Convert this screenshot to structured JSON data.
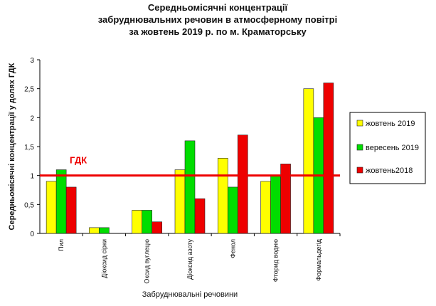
{
  "chart_data": {
    "type": "bar",
    "title_lines": [
      "Середньомісячні концентрації",
      "забруднювальних  речовин  в атмосферному повітрі",
      "за жовтень 2019 р. по м. Краматорську"
    ],
    "xlabel": "Забруднювальні речовини",
    "ylabel": "Середньомісячні концентрації у  долях ГДК",
    "ylim": [
      0,
      3
    ],
    "yticks": [
      "0",
      "0,5",
      "1",
      "1,5",
      "2",
      "2,5",
      "3"
    ],
    "grid": false,
    "legend_position": "right",
    "categories": [
      "Пил",
      "Діоксид сірки",
      "Оксид вуглецю",
      "Діоксид азоту",
      "Фенол",
      "Фторид водню",
      "Формальдегід"
    ],
    "series": [
      {
        "name": "жовтень 2019",
        "color": "#ffff00",
        "values": [
          0.9,
          0.1,
          0.4,
          1.1,
          1.3,
          0.9,
          2.5
        ]
      },
      {
        "name": "вересень 2019",
        "color": "#00dd00",
        "values": [
          1.1,
          0.1,
          0.4,
          1.6,
          0.8,
          1.0,
          2.0
        ]
      },
      {
        "name": "жовтень2018",
        "color": "#ee0000",
        "values": [
          0.8,
          null,
          0.2,
          0.6,
          1.7,
          1.2,
          2.6
        ]
      }
    ],
    "reference_line": {
      "label": "ГДК",
      "value": 1,
      "color": "#ee0000"
    }
  }
}
